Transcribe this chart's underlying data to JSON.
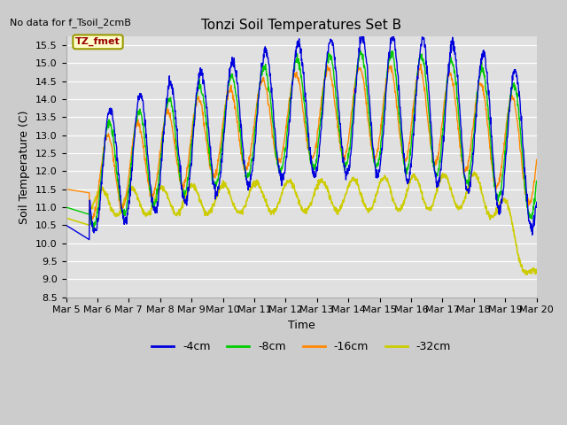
{
  "title": "Tonzi Soil Temperatures Set B",
  "no_data_text": "No data for f_Tsoil_2cmB",
  "annotation_text": "TZ_fmet",
  "xlabel": "Time",
  "ylabel": "Soil Temperature (C)",
  "ylim": [
    8.5,
    15.75
  ],
  "yticks": [
    8.5,
    9.0,
    9.5,
    10.0,
    10.5,
    11.0,
    11.5,
    12.0,
    12.5,
    13.0,
    13.5,
    14.0,
    14.5,
    15.0,
    15.5
  ],
  "colors": {
    "4cm": "#0000dd",
    "8cm": "#00cc00",
    "16cm": "#ff8800",
    "32cm": "#cccc00"
  },
  "legend_labels": [
    "-4cm",
    "-8cm",
    "-16cm",
    "-32cm"
  ],
  "fig_facecolor": "#cccccc",
  "ax_facecolor": "#e0e0e0",
  "n_points": 1440,
  "start_day": 5,
  "end_day": 20
}
